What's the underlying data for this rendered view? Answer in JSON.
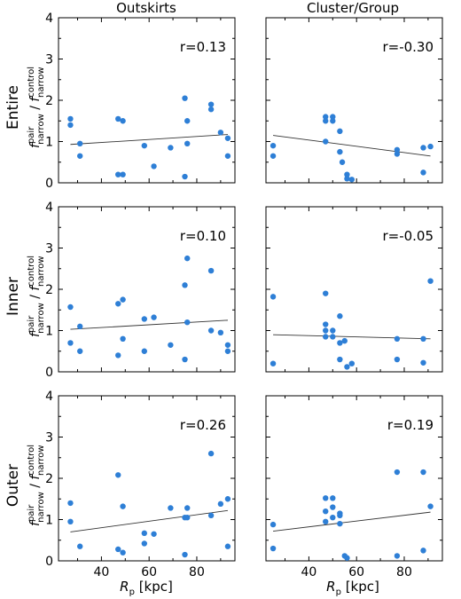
{
  "colors": {
    "marker": "#2e7fd6",
    "fit_line": "#333333",
    "axis": "#000000"
  },
  "column_titles": [
    "Outskirts",
    "Cluster/Group"
  ],
  "row_labels": [
    "Entire",
    "Inner",
    "Outer"
  ],
  "y_axis_label": "f^pair_narrow / f^control_narrow",
  "x_axis_label": "R_p [kpc]",
  "chart_data": [
    {
      "type": "scatter",
      "row": "Entire",
      "column": "Outskirts",
      "r_label": "r=0.13",
      "xlim": [
        22,
        96
      ],
      "ylim": [
        0,
        4
      ],
      "x_ticks": [
        40,
        60,
        80
      ],
      "y_ticks": [
        0,
        1,
        2,
        3,
        4
      ],
      "points": [
        [
          27,
          1.55
        ],
        [
          27,
          1.4
        ],
        [
          31,
          0.95
        ],
        [
          31,
          0.65
        ],
        [
          47,
          1.55
        ],
        [
          47,
          0.2
        ],
        [
          49,
          1.5
        ],
        [
          49,
          0.2
        ],
        [
          58,
          0.9
        ],
        [
          62,
          0.4
        ],
        [
          69,
          0.85
        ],
        [
          75,
          2.05
        ],
        [
          75,
          0.15
        ],
        [
          76,
          1.5
        ],
        [
          76,
          0.95
        ],
        [
          86,
          1.9
        ],
        [
          86,
          1.78
        ],
        [
          90,
          1.22
        ],
        [
          93,
          1.08
        ],
        [
          93,
          0.65
        ]
      ],
      "fit": [
        [
          27,
          0.93
        ],
        [
          93,
          1.17
        ]
      ]
    },
    {
      "type": "scatter",
      "row": "Entire",
      "column": "Cluster/Group",
      "r_label": "r=-0.30",
      "xlim": [
        22,
        96
      ],
      "ylim": [
        0,
        4
      ],
      "x_ticks": [
        40,
        60,
        80
      ],
      "y_ticks": [
        0,
        1,
        2,
        3,
        4
      ],
      "points": [
        [
          25,
          0.9
        ],
        [
          25,
          0.65
        ],
        [
          47,
          1.6
        ],
        [
          47,
          1.5
        ],
        [
          47,
          1.0
        ],
        [
          50,
          1.6
        ],
        [
          50,
          1.5
        ],
        [
          53,
          1.25
        ],
        [
          53,
          0.75
        ],
        [
          54,
          0.5
        ],
        [
          56,
          0.2
        ],
        [
          56,
          0.1
        ],
        [
          58,
          0.08
        ],
        [
          77,
          0.8
        ],
        [
          77,
          0.7
        ],
        [
          88,
          0.85
        ],
        [
          88,
          0.25
        ],
        [
          91,
          0.88
        ]
      ],
      "fit": [
        [
          25,
          1.15
        ],
        [
          91,
          0.65
        ]
      ]
    },
    {
      "type": "scatter",
      "row": "Inner",
      "column": "Outskirts",
      "r_label": "r=0.10",
      "xlim": [
        22,
        96
      ],
      "ylim": [
        0,
        4
      ],
      "x_ticks": [
        40,
        60,
        80
      ],
      "y_ticks": [
        0,
        1,
        2,
        3,
        4
      ],
      "points": [
        [
          27,
          1.57
        ],
        [
          27,
          0.7
        ],
        [
          31,
          1.1
        ],
        [
          31,
          0.5
        ],
        [
          47,
          1.65
        ],
        [
          47,
          0.4
        ],
        [
          49,
          1.75
        ],
        [
          49,
          0.8
        ],
        [
          58,
          1.28
        ],
        [
          58,
          0.5
        ],
        [
          62,
          1.32
        ],
        [
          69,
          0.65
        ],
        [
          75,
          2.1
        ],
        [
          75,
          0.3
        ],
        [
          76,
          2.75
        ],
        [
          76,
          1.2
        ],
        [
          86,
          2.45
        ],
        [
          86,
          1.0
        ],
        [
          90,
          0.95
        ],
        [
          93,
          0.65
        ],
        [
          93,
          0.5
        ]
      ],
      "fit": [
        [
          27,
          1.03
        ],
        [
          93,
          1.25
        ]
      ]
    },
    {
      "type": "scatter",
      "row": "Inner",
      "column": "Cluster/Group",
      "r_label": "r=-0.05",
      "xlim": [
        22,
        96
      ],
      "ylim": [
        0,
        4
      ],
      "x_ticks": [
        40,
        60,
        80
      ],
      "y_ticks": [
        0,
        1,
        2,
        3,
        4
      ],
      "points": [
        [
          25,
          1.82
        ],
        [
          25,
          0.2
        ],
        [
          47,
          1.9
        ],
        [
          47,
          1.15
        ],
        [
          47,
          1.0
        ],
        [
          47,
          0.85
        ],
        [
          50,
          1.0
        ],
        [
          50,
          0.85
        ],
        [
          53,
          1.35
        ],
        [
          53,
          0.7
        ],
        [
          53,
          0.3
        ],
        [
          55,
          0.75
        ],
        [
          56,
          0.12
        ],
        [
          58,
          0.2
        ],
        [
          77,
          0.8
        ],
        [
          77,
          0.3
        ],
        [
          88,
          0.8
        ],
        [
          88,
          0.22
        ],
        [
          91,
          2.2
        ]
      ],
      "fit": [
        [
          25,
          0.9
        ],
        [
          91,
          0.8
        ]
      ]
    },
    {
      "type": "scatter",
      "row": "Outer",
      "column": "Outskirts",
      "r_label": "r=0.26",
      "xlim": [
        22,
        96
      ],
      "ylim": [
        0,
        4
      ],
      "x_ticks": [
        40,
        60,
        80
      ],
      "y_ticks": [
        0,
        1,
        2,
        3,
        4
      ],
      "points": [
        [
          27,
          1.4
        ],
        [
          27,
          0.95
        ],
        [
          31,
          0.35
        ],
        [
          47,
          2.08
        ],
        [
          47,
          0.28
        ],
        [
          49,
          1.32
        ],
        [
          49,
          0.2
        ],
        [
          58,
          0.67
        ],
        [
          58,
          0.42
        ],
        [
          62,
          0.65
        ],
        [
          69,
          1.28
        ],
        [
          75,
          0.15
        ],
        [
          75,
          1.05
        ],
        [
          76,
          1.28
        ],
        [
          76,
          1.05
        ],
        [
          86,
          2.6
        ],
        [
          86,
          1.1
        ],
        [
          90,
          1.38
        ],
        [
          93,
          1.5
        ],
        [
          93,
          0.35
        ]
      ],
      "fit": [
        [
          27,
          0.7
        ],
        [
          93,
          1.22
        ]
      ]
    },
    {
      "type": "scatter",
      "row": "Outer",
      "column": "Cluster/Group",
      "r_label": "r=0.19",
      "xlim": [
        22,
        96
      ],
      "ylim": [
        0,
        4
      ],
      "x_ticks": [
        40,
        60,
        80
      ],
      "y_ticks": [
        0,
        1,
        2,
        3,
        4
      ],
      "points": [
        [
          25,
          0.88
        ],
        [
          25,
          0.3
        ],
        [
          47,
          1.52
        ],
        [
          47,
          1.2
        ],
        [
          47,
          0.95
        ],
        [
          50,
          1.52
        ],
        [
          50,
          1.3
        ],
        [
          50,
          1.05
        ],
        [
          53,
          1.15
        ],
        [
          53,
          1.1
        ],
        [
          53,
          0.9
        ],
        [
          55,
          0.12
        ],
        [
          56,
          0.07
        ],
        [
          77,
          2.15
        ],
        [
          77,
          0.12
        ],
        [
          88,
          2.15
        ],
        [
          88,
          0.25
        ],
        [
          91,
          1.32
        ]
      ],
      "fit": [
        [
          25,
          0.72
        ],
        [
          91,
          1.18
        ]
      ]
    }
  ]
}
